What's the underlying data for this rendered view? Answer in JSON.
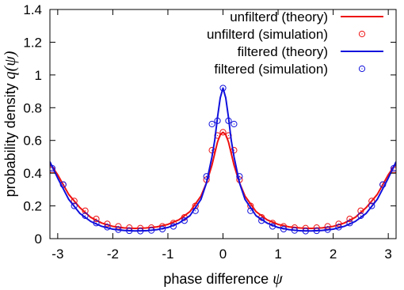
{
  "chart_data": {
    "type": "line",
    "xlabel": "phase difference",
    "xlabel_symbol": "ψ",
    "ylabel": "probability density",
    "ylabel_symbol": "q(ψ)",
    "xlim": [
      -3.14159,
      3.14159
    ],
    "ylim": [
      0,
      1.4
    ],
    "x_ticks": [
      -3,
      -2,
      -1,
      0,
      1,
      2,
      3
    ],
    "x_tick_labels": [
      "-3",
      "-2",
      "-1",
      "0",
      "1",
      "2",
      "3"
    ],
    "y_ticks": [
      0,
      0.2,
      0.4,
      0.6,
      0.8,
      1,
      1.2,
      1.4
    ],
    "y_tick_labels": [
      "0",
      "0.2",
      "0.4",
      "0.6",
      "0.8",
      "1",
      "1.2",
      "1.4"
    ],
    "grid": false,
    "legend_position": "top-right",
    "series": [
      {
        "name": "unfilterd (theory)",
        "kind": "line",
        "color": "#ee1111",
        "x": [
          -3.14159,
          -3.0,
          -2.8,
          -2.6,
          -2.4,
          -2.2,
          -2.0,
          -1.8,
          -1.6,
          -1.4,
          -1.2,
          -1.0,
          -0.8,
          -0.6,
          -0.4,
          -0.3,
          -0.2,
          -0.15,
          -0.1,
          -0.05,
          0.0,
          0.05,
          0.1,
          0.15,
          0.2,
          0.3,
          0.4,
          0.6,
          0.8,
          1.0,
          1.2,
          1.4,
          1.6,
          1.8,
          2.0,
          2.2,
          2.4,
          2.6,
          2.8,
          3.0,
          3.14159
        ],
        "y": [
          0.46,
          0.39,
          0.27,
          0.19,
          0.13,
          0.095,
          0.075,
          0.066,
          0.063,
          0.065,
          0.072,
          0.087,
          0.115,
          0.165,
          0.26,
          0.34,
          0.45,
          0.52,
          0.59,
          0.635,
          0.65,
          0.635,
          0.59,
          0.52,
          0.45,
          0.34,
          0.26,
          0.165,
          0.115,
          0.087,
          0.072,
          0.065,
          0.063,
          0.066,
          0.075,
          0.095,
          0.13,
          0.19,
          0.27,
          0.39,
          0.46
        ]
      },
      {
        "name": "unfilterd (simulation)",
        "kind": "points",
        "color": "#ee1111",
        "x": [
          -3.1,
          -2.9,
          -2.7,
          -2.5,
          -2.3,
          -2.1,
          -1.9,
          -1.7,
          -1.5,
          -1.3,
          -1.1,
          -0.9,
          -0.7,
          -0.5,
          -0.3,
          -0.2,
          -0.1,
          0.0,
          0.1,
          0.2,
          0.3,
          0.5,
          0.7,
          0.9,
          1.1,
          1.3,
          1.5,
          1.7,
          1.9,
          2.1,
          2.3,
          2.5,
          2.7,
          2.9,
          3.1
        ],
        "y": [
          0.42,
          0.33,
          0.23,
          0.17,
          0.12,
          0.09,
          0.075,
          0.067,
          0.064,
          0.067,
          0.075,
          0.095,
          0.13,
          0.2,
          0.36,
          0.54,
          0.63,
          0.65,
          0.63,
          0.54,
          0.36,
          0.2,
          0.13,
          0.095,
          0.075,
          0.067,
          0.064,
          0.067,
          0.075,
          0.09,
          0.12,
          0.17,
          0.23,
          0.33,
          0.42
        ]
      },
      {
        "name": "filtered (theory)",
        "kind": "line",
        "color": "#1111dd",
        "x": [
          -3.14159,
          -3.0,
          -2.8,
          -2.6,
          -2.4,
          -2.2,
          -2.0,
          -1.8,
          -1.6,
          -1.4,
          -1.2,
          -1.0,
          -0.8,
          -0.6,
          -0.4,
          -0.3,
          -0.2,
          -0.15,
          -0.1,
          -0.05,
          0.0,
          0.05,
          0.1,
          0.15,
          0.2,
          0.3,
          0.4,
          0.6,
          0.8,
          1.0,
          1.2,
          1.4,
          1.6,
          1.8,
          2.0,
          2.2,
          2.4,
          2.6,
          2.8,
          3.0,
          3.14159
        ],
        "y": [
          0.47,
          0.37,
          0.24,
          0.155,
          0.105,
          0.075,
          0.058,
          0.05,
          0.047,
          0.048,
          0.055,
          0.068,
          0.095,
          0.14,
          0.24,
          0.34,
          0.5,
          0.6,
          0.74,
          0.86,
          0.92,
          0.86,
          0.74,
          0.6,
          0.5,
          0.34,
          0.24,
          0.14,
          0.095,
          0.068,
          0.055,
          0.048,
          0.047,
          0.05,
          0.058,
          0.075,
          0.105,
          0.155,
          0.24,
          0.37,
          0.47
        ]
      },
      {
        "name": "filtered (simulation)",
        "kind": "points",
        "color": "#1111dd",
        "x": [
          -3.1,
          -2.9,
          -2.7,
          -2.5,
          -2.3,
          -2.1,
          -1.9,
          -1.7,
          -1.5,
          -1.3,
          -1.1,
          -0.9,
          -0.7,
          -0.5,
          -0.3,
          -0.2,
          -0.1,
          0.0,
          0.1,
          0.2,
          0.3,
          0.5,
          0.7,
          0.9,
          1.1,
          1.3,
          1.5,
          1.7,
          1.9,
          2.1,
          2.3,
          2.5,
          2.7,
          2.9,
          3.1
        ],
        "y": [
          0.43,
          0.33,
          0.2,
          0.14,
          0.095,
          0.07,
          0.055,
          0.048,
          0.046,
          0.05,
          0.058,
          0.075,
          0.11,
          0.17,
          0.38,
          0.7,
          0.72,
          0.92,
          0.72,
          0.7,
          0.38,
          0.17,
          0.11,
          0.075,
          0.058,
          0.05,
          0.046,
          0.048,
          0.055,
          0.07,
          0.095,
          0.14,
          0.2,
          0.33,
          0.43
        ]
      }
    ]
  }
}
